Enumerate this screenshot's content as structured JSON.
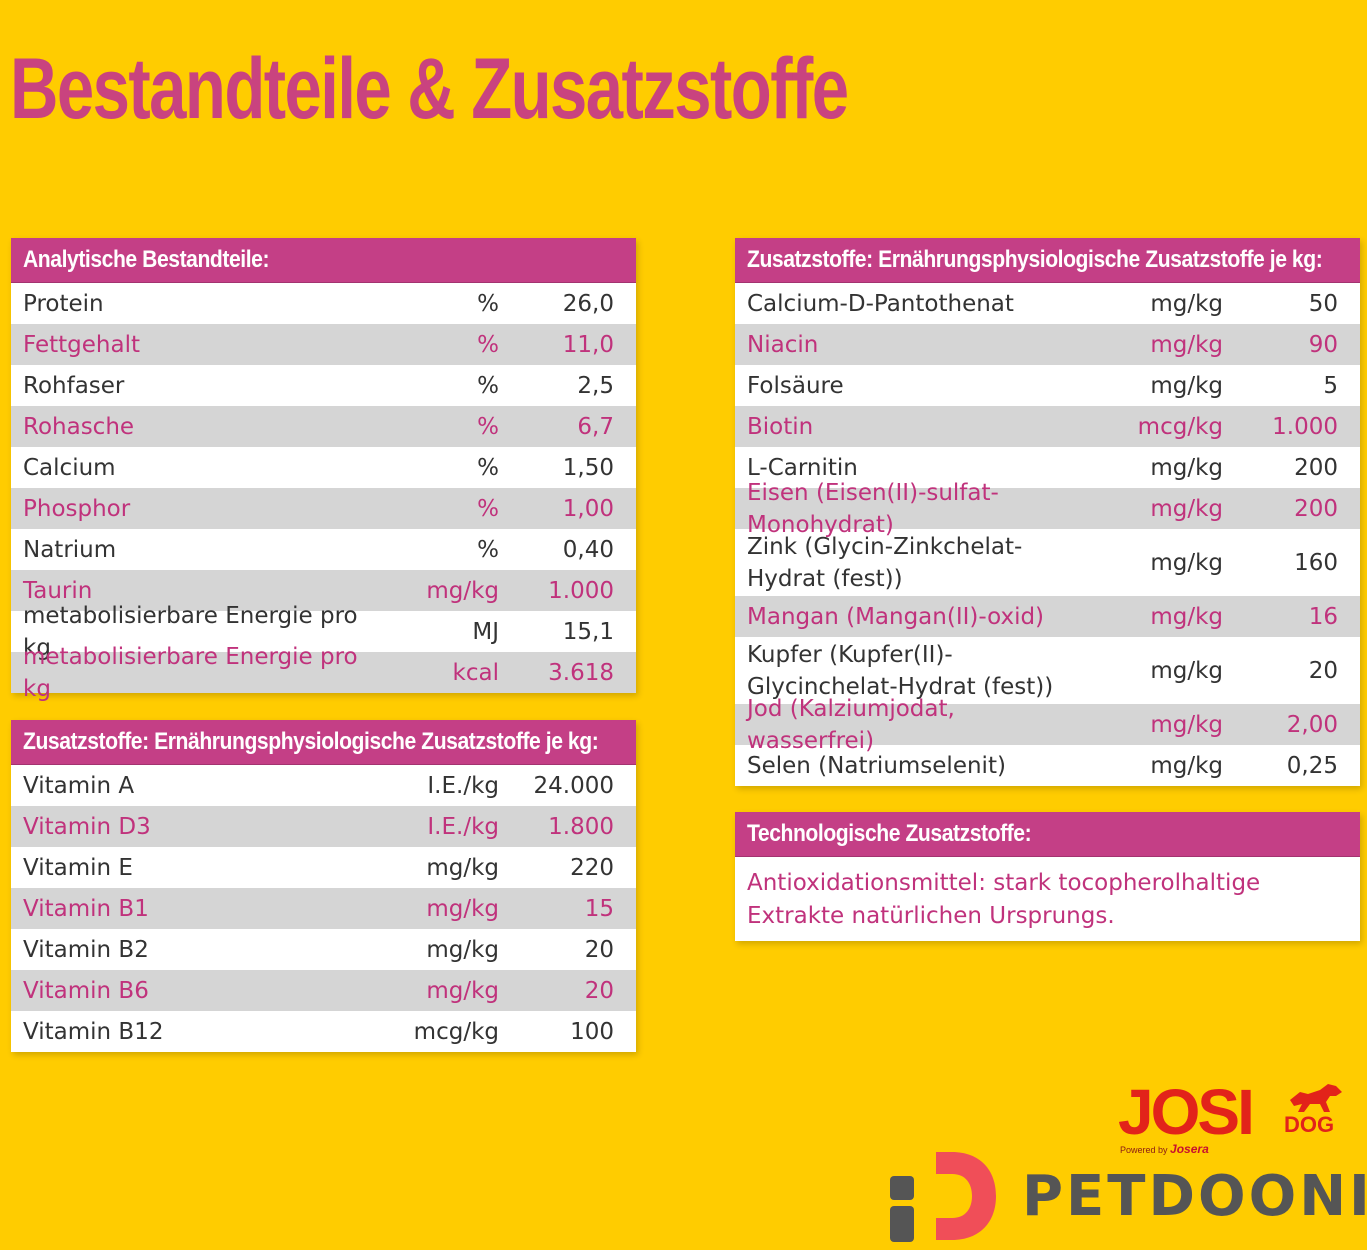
{
  "title": "Bestandteile & Zusatzstoffe",
  "analytic": {
    "header": "Analytische Bestandteile:",
    "rows": [
      {
        "name": "Protein",
        "unit": "%",
        "value": "26,0"
      },
      {
        "name": "Fettgehalt",
        "unit": "%",
        "value": "11,0"
      },
      {
        "name": "Rohfaser",
        "unit": "%",
        "value": "2,5"
      },
      {
        "name": "Rohasche",
        "unit": "%",
        "value": "6,7"
      },
      {
        "name": "Calcium",
        "unit": "%",
        "value": "1,50"
      },
      {
        "name": "Phosphor",
        "unit": "%",
        "value": "1,00"
      },
      {
        "name": "Natrium",
        "unit": "%",
        "value": "0,40"
      },
      {
        "name": "Taurin",
        "unit": "mg/kg",
        "value": "1.000"
      },
      {
        "name": "metabolisierbare Energie pro kg",
        "unit": "MJ",
        "value": "15,1"
      },
      {
        "name": "metabolisierbare Energie pro kg",
        "unit": "kcal",
        "value": "3.618"
      }
    ]
  },
  "vitamins": {
    "header": "Zusatzstoffe: Ernährungsphysiologische Zusatzstoffe je kg:",
    "rows": [
      {
        "name": "Vitamin A",
        "unit": "I.E./kg",
        "value": "24.000"
      },
      {
        "name": "Vitamin D3",
        "unit": "I.E./kg",
        "value": "1.800"
      },
      {
        "name": "Vitamin E",
        "unit": "mg/kg",
        "value": "220"
      },
      {
        "name": "Vitamin B1",
        "unit": "mg/kg",
        "value": "15"
      },
      {
        "name": "Vitamin B2",
        "unit": "mg/kg",
        "value": "20"
      },
      {
        "name": "Vitamin B6",
        "unit": "mg/kg",
        "value": "20"
      },
      {
        "name": "Vitamin B12",
        "unit": "mcg/kg",
        "value": "100"
      }
    ]
  },
  "minerals": {
    "header": "Zusatzstoffe: Ernährungsphysiologische Zusatzstoffe je kg:",
    "rows": [
      {
        "name": "Calcium-D-Pantothenat",
        "unit": "mg/kg",
        "value": "50"
      },
      {
        "name": "Niacin",
        "unit": "mg/kg",
        "value": "90"
      },
      {
        "name": "Folsäure",
        "unit": "mg/kg",
        "value": "5"
      },
      {
        "name": "Biotin",
        "unit": "mcg/kg",
        "value": "1.000"
      },
      {
        "name": "L-Carnitin",
        "unit": "mg/kg",
        "value": "200"
      },
      {
        "name": "Eisen (Eisen(II)-sulfat-Monohydrat)",
        "unit": "mg/kg",
        "value": "200"
      },
      {
        "name": "Zink (Glycin-Zinkchelat-Hydrat (fest))",
        "unit": "mg/kg",
        "value": "160"
      },
      {
        "name": "Mangan (Mangan(II)-oxid)",
        "unit": "mg/kg",
        "value": "16"
      },
      {
        "name": "Kupfer (Kupfer(II)-Glycinchelat-Hydrat (fest))",
        "unit": "mg/kg",
        "value": "20"
      },
      {
        "name": "Jod (Kalziumjodat, wasserfrei)",
        "unit": "mg/kg",
        "value": "2,00"
      },
      {
        "name": "Selen (Natriumselenit)",
        "unit": "mg/kg",
        "value": "0,25"
      }
    ]
  },
  "technological": {
    "header": "Technologische Zusatzstoffe:",
    "text": "Antioxidationsmittel: stark tocopherolhaltige Extrakte natürlichen Ursprungs."
  },
  "brand": {
    "josi": "JOSI",
    "dog": "DOG",
    "powered_by": "Powered by",
    "josera": "Josera",
    "petdooni": "PETDOONI"
  },
  "colors": {
    "background": "#FFCC00",
    "magenta": "#C43F86",
    "josi_red": "#E2231A",
    "petdooni_red": "#F04E58"
  }
}
